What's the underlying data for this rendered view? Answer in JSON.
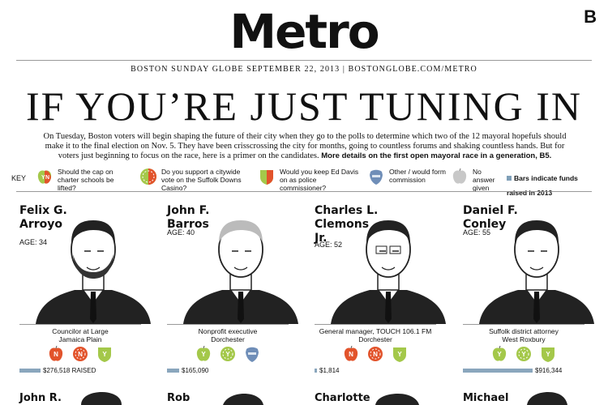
{
  "section_letter": "B",
  "masthead": "Metro",
  "dateline": "BOSTON SUNDAY GLOBE SEPTEMBER 22, 2013 | BOSTONGLOBE.COM/METRO",
  "headline": "IF YOU’RE JUST TUNING IN",
  "intro": {
    "text": "On Tuesday, Boston voters will begin shaping the future of their city when they go to the polls to determine which two of the 12 mayoral hopefuls should make it to the final election on Nov. 5. They have been crisscrossing the city for months, going to countless forums and shaking countless hands. But for voters just beginning to focus on the race, here is a primer on the candidates.",
    "bold": "More details on the first open mayoral race in a generation, B5."
  },
  "key": {
    "label": "KEY",
    "items": [
      {
        "icon": "apple-yes-no-icon",
        "text": "Should the cap on charter schools be lifted?"
      },
      {
        "icon": "slot-machine-yes-no-icon",
        "text": "Do you support a citywide vote on the Suffolk Downs Casino?"
      },
      {
        "icon": "police-badge-yes-no-icon",
        "text": "Would you keep Ed Davis on as police commissioner?"
      },
      {
        "icon": "other-badge-icon",
        "text": "Other / would form commission"
      },
      {
        "icon": "no-answer-apple-icon",
        "text": "No answer given"
      }
    ],
    "bars_legend": "Bars indicate funds raised in 2013"
  },
  "colors": {
    "yes": "#a4c84a",
    "no": "#e2532b",
    "other": "#6f8eb8",
    "bar": "#8aa6bd"
  },
  "candidates": [
    {
      "name1": "Felix G.",
      "name2": "Arroyo",
      "name3": "",
      "age": "AGE: 34",
      "role": "Councilor at Large",
      "hood": "Jamaica Plain",
      "raised": "$276,518 RAISED",
      "raised_fraction": 0.3,
      "answers": [
        "no",
        "no",
        "yes"
      ]
    },
    {
      "name1": "John F.",
      "name2": "Barros",
      "name3": "",
      "age": "AGE: 40",
      "role": "Nonprofit executive",
      "hood": "Dorchester",
      "raised": "$165,090",
      "raised_fraction": 0.18,
      "answers": [
        "yes",
        "yes",
        "other"
      ]
    },
    {
      "name1": "Charles L.",
      "name2": "Clemons",
      "name3": "Jr.",
      "age": "AGE: 52",
      "role": "General manager, TOUCH 106.1 FM",
      "hood": "Dorchester",
      "raised": "$1,814",
      "raised_fraction": 0.01,
      "answers": [
        "no",
        "no",
        "yes"
      ]
    },
    {
      "name1": "Daniel F.",
      "name2": "Conley",
      "name3": "",
      "age": "AGE: 55",
      "role": "Suffolk district attorney",
      "hood": "West Roxbury",
      "raised": "$916,344",
      "raised_fraction": 1.0,
      "answers": [
        "yes",
        "yes",
        "yes"
      ]
    }
  ],
  "next_row": [
    "John R.",
    "Rob",
    "Charlotte",
    "Michael"
  ]
}
